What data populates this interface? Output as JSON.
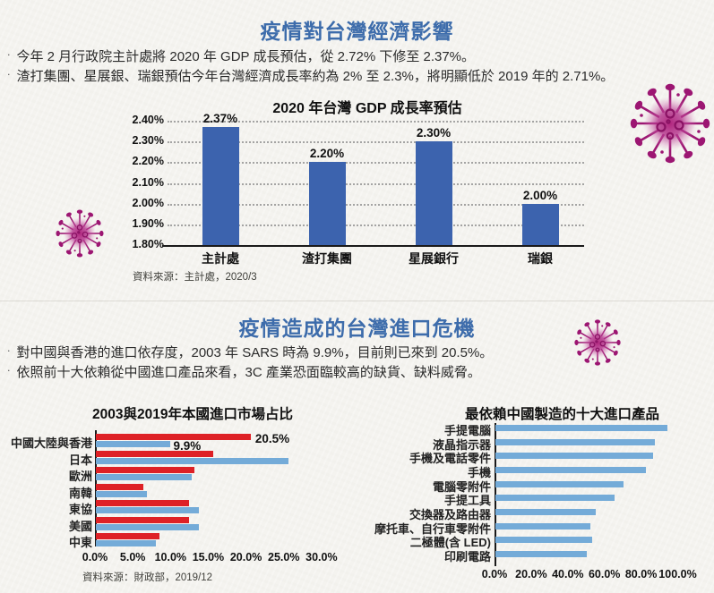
{
  "page": {
    "section1": {
      "title": "疫情對台灣經濟影響",
      "bullets": [
        "今年 2 月行政院主計處將 2020 年 GDP 成長預估，從 2.72% 下修至 2.37%。",
        "渣打集團、星展銀、瑞銀預估今年台灣經濟成長率約為 2% 至 2.3%，將明顯低於 2019 年的 2.71%。"
      ]
    },
    "section2": {
      "title": "疫情造成的台灣進口危機",
      "bullets": [
        "對中國與香港的進口依存度，2003 年 SARS 時為 9.9%，目前則已來到 20.5%。",
        "依照前十大依賴從中國進口產品來看，3C 產業恐面臨較高的缺貨、缺料威脅。"
      ]
    }
  },
  "colors": {
    "background": "#f4f3ef",
    "title_blue": "#3d6cab",
    "gdp_bar": "#3c63ae",
    "red_2019": "#de2126",
    "blue_2003": "#74abd8",
    "product_bar": "#74abd8",
    "axis": "#1a1a1a",
    "gridline": "#8a8a8a",
    "virus_magenta": "#9c1672"
  },
  "chart_data": [
    {
      "type": "bar",
      "title": "2020 年台灣 GDP 成長率預估",
      "categories": [
        "主計處",
        "渣打集團",
        "星展銀行",
        "瑞銀"
      ],
      "values": [
        2.37,
        2.2,
        2.3,
        2.0
      ],
      "data_labels": [
        "2.37%",
        "2.20%",
        "2.30%",
        "2.00%"
      ],
      "xlabel": "",
      "ylabel": "",
      "ylim": [
        1.8,
        2.4
      ],
      "yticks": [
        "2.40%",
        "2.30%",
        "2.20%",
        "2.10%",
        "2.00%",
        "1.90%",
        "1.80%"
      ],
      "grid": "dotted-horizontal",
      "legend": "none",
      "source": "資料來源：主計處，2020/3"
    },
    {
      "type": "bar-horizontal-grouped",
      "title": "2003與2019年本國進口市場占比",
      "categories": [
        "中國大陸與香港",
        "日本",
        "歐洲",
        "南韓",
        "東協",
        "美國",
        "中東"
      ],
      "series": [
        {
          "name": "2019",
          "color_key": "red_2019",
          "values": [
            20.5,
            15.5,
            13.0,
            6.3,
            12.3,
            12.3,
            8.4
          ]
        },
        {
          "name": "2003",
          "color_key": "blue_2003",
          "values": [
            9.9,
            25.5,
            12.7,
            6.8,
            13.6,
            13.7,
            8.0
          ]
        }
      ],
      "xlim": [
        0,
        30
      ],
      "xticks": [
        "0.0%",
        "5.0%",
        "10.0%",
        "15.0%",
        "20.0%",
        "25.0%",
        "30.0%"
      ],
      "annotations": [
        {
          "text": "20.5%",
          "series": "2019",
          "category": "中國大陸與香港"
        },
        {
          "text": "9.9%",
          "series": "2003",
          "category": "中國大陸與香港"
        }
      ],
      "legend": "none",
      "source": "資料來源：財政部，2019/12"
    },
    {
      "type": "bar-horizontal",
      "title": "最依賴中國製造的十大進口產品",
      "categories": [
        "手提電腦",
        "液晶指示器",
        "手機及電話零件",
        "手機",
        "電腦零附件",
        "手提工具",
        "交換器及路由器",
        "摩托車、自行車零附件",
        "二極體(含 LED)",
        "印刷電路"
      ],
      "values": [
        94,
        87,
        86,
        82,
        70,
        65,
        55,
        52,
        53,
        50
      ],
      "xlim": [
        0,
        100
      ],
      "xticks": [
        "0.0%",
        "20.0%",
        "40.0%",
        "60.0%",
        "80.0%",
        "100.0%"
      ],
      "legend": "none"
    }
  ]
}
